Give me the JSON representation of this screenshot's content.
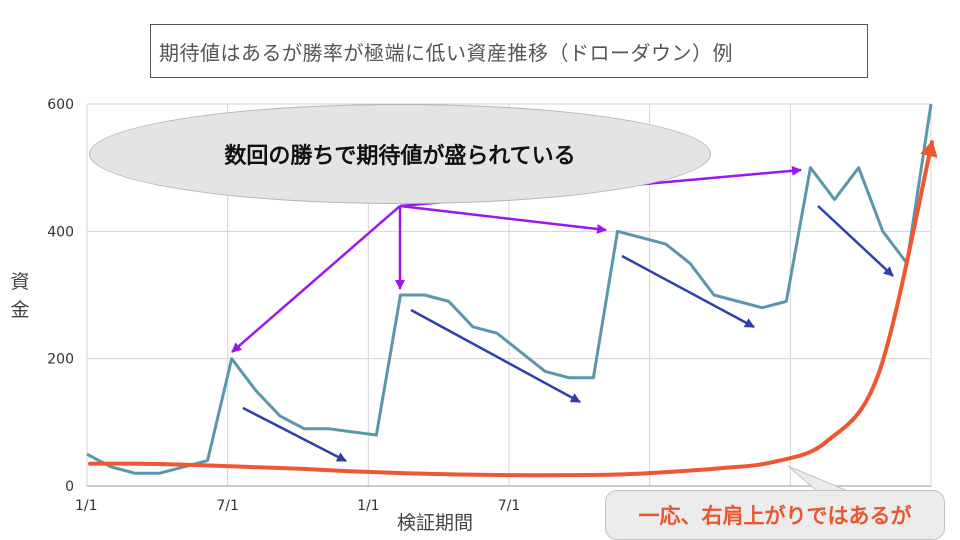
{
  "title": "期待値はあるが勝率が極端に低い資産推移（ドローダウン）例",
  "annotations": {
    "bubble": "数回の勝ちで期待値が盛られている",
    "callout": "一応、右肩上がりではあるが"
  },
  "colors": {
    "capital_line": "#5b96ab",
    "trend_curve": "#ee5732",
    "win_arrows": "#9b16f0",
    "drawdown_arrows": "#2f3fae",
    "grid": "#d4d4d4"
  },
  "chart_data": {
    "type": "line",
    "title": "",
    "xlabel": "検証期間",
    "ylabel": "資金",
    "ylim": [
      0,
      600
    ],
    "yticks": [
      "0",
      "200",
      "400",
      "600"
    ],
    "xticks": [
      "1/1",
      "7/1",
      "1/1",
      "7/1"
    ],
    "grid": true,
    "series": [
      {
        "style": "jagged",
        "values": [
          50,
          30,
          20,
          20,
          30,
          40,
          200,
          150,
          110,
          90,
          90,
          85,
          80,
          300,
          300,
          290,
          250,
          240,
          210,
          180,
          170,
          170,
          400,
          390,
          380,
          350,
          300,
          290,
          280,
          290,
          500,
          450,
          500,
          400,
          350,
          600
        ]
      },
      {
        "style": "smooth-curve",
        "values": [
          35,
          35,
          33,
          30,
          27,
          23,
          20,
          18,
          17,
          17,
          18,
          22,
          28,
          38,
          70,
          180,
          540
        ]
      }
    ]
  }
}
